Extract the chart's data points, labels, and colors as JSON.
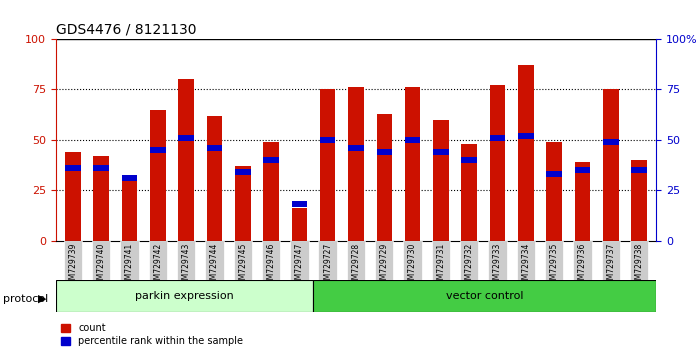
{
  "title": "GDS4476 / 8121130",
  "samples": [
    "GSM729739",
    "GSM729740",
    "GSM729741",
    "GSM729742",
    "GSM729743",
    "GSM729744",
    "GSM729745",
    "GSM729746",
    "GSM729747",
    "GSM729727",
    "GSM729728",
    "GSM729729",
    "GSM729730",
    "GSM729731",
    "GSM729732",
    "GSM729733",
    "GSM729734",
    "GSM729735",
    "GSM729736",
    "GSM729737",
    "GSM729738"
  ],
  "count_values": [
    44,
    42,
    32,
    65,
    80,
    62,
    37,
    49,
    16,
    75,
    76,
    63,
    76,
    60,
    48,
    77,
    87,
    49,
    39,
    75,
    40
  ],
  "percentile_values": [
    36,
    36,
    31,
    45,
    51,
    46,
    34,
    40,
    18,
    50,
    46,
    44,
    50,
    44,
    40,
    51,
    52,
    33,
    35,
    49,
    35
  ],
  "parkin_count": 9,
  "vector_count": 12,
  "bar_color": "#cc1100",
  "percentile_color": "#0000cc",
  "parkin_bg": "#ccffcc",
  "vector_bg": "#44cc44",
  "label_bg": "#cccccc",
  "grid_color": "#000000",
  "ylim": [
    0,
    100
  ],
  "ylabel_left": "",
  "ylabel_right": "",
  "legend_count": "count",
  "legend_percentile": "percentile rank within the sample",
  "protocol_label": "protocol",
  "parkin_label": "parkin expression",
  "vector_label": "vector control"
}
